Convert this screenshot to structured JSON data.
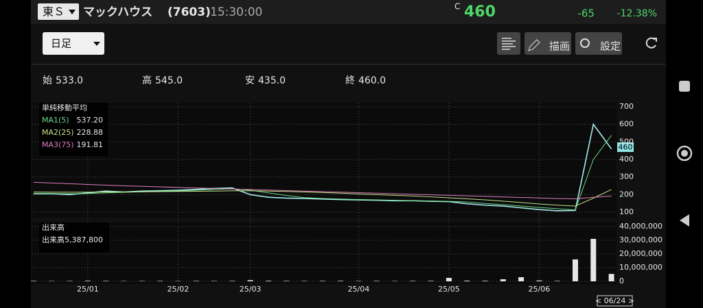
{
  "header": {
    "exchange": "東Ｓ",
    "name": "マックハウス",
    "code": "(7603)",
    "time": "15:30:00",
    "price_flag": "C",
    "price": "460",
    "change": "-65",
    "change_pct": "-12.38%"
  },
  "toolbar": {
    "period": "日足",
    "draw": "描画",
    "settings": "設定"
  },
  "ohlc": [
    {
      "label": "始",
      "value": "533.0"
    },
    {
      "label": "高",
      "value": "545.0"
    },
    {
      "label": "安",
      "value": "435.0"
    },
    {
      "label": "終",
      "value": "460.0"
    }
  ],
  "chart_data": [
    {
      "type": "line",
      "title": "単純移動平均",
      "last_label": "460",
      "cursor_label": "< 06/24 >",
      "categories": [
        null,
        null,
        null,
        "25/01",
        null,
        null,
        null,
        null,
        "25/02",
        null,
        null,
        null,
        "25/03",
        null,
        null,
        null,
        null,
        null,
        "25/04",
        null,
        null,
        null,
        null,
        "25/05",
        null,
        null,
        null,
        null,
        "25/06",
        null,
        null,
        null,
        null
      ],
      "series": [
        {
          "color": "#a8ecec",
          "values": [
            205,
            205,
            200,
            210,
            220,
            215,
            220,
            222,
            225,
            230,
            235,
            238,
            200,
            185,
            180,
            178,
            175,
            172,
            170,
            168,
            165,
            165,
            162,
            160,
            148,
            140,
            135,
            125,
            115,
            108,
            110,
            600,
            460
          ]
        },
        {
          "name": "MA1(5)",
          "legend_value": "537.20",
          "color": "#6fdc8c",
          "values": [
            207,
            206,
            205,
            206,
            210,
            213,
            216,
            219,
            221,
            225,
            229,
            233,
            225,
            210,
            195,
            183,
            178,
            175,
            172,
            170,
            168,
            166,
            164,
            162,
            158,
            150,
            143,
            135,
            127,
            120,
            113,
            400,
            537.2
          ]
        },
        {
          "name": "MA2(25)",
          "legend_value": "228.88",
          "color": "#c8e48a",
          "values": [
            215,
            214,
            214,
            214,
            215,
            215,
            216,
            217,
            218,
            219,
            220,
            222,
            222,
            220,
            218,
            215,
            212,
            208,
            204,
            200,
            196,
            192,
            187,
            182,
            176,
            170,
            163,
            155,
            147,
            140,
            135,
            180,
            228.88
          ]
        },
        {
          "name": "MA3(75)",
          "legend_value": "191.81",
          "color": "#e07fc0",
          "values": [
            270,
            266,
            262,
            258,
            254,
            250,
            247,
            244,
            241,
            238,
            235,
            232,
            229,
            226,
            223,
            220,
            217,
            214,
            211,
            208,
            205,
            202,
            199,
            196,
            193,
            190,
            187,
            184,
            181,
            178,
            176,
            185,
            191.81
          ]
        }
      ],
      "ylim": [
        69,
        723
      ],
      "yticks": [
        100,
        200,
        300,
        400,
        500,
        600,
        700
      ],
      "grid": true
    },
    {
      "type": "bar",
      "title": "出来高",
      "series": [
        {
          "name": "出来高",
          "legend_value": "5,387,800",
          "color": "#e6e6e6",
          "values": [
            300000,
            200000,
            250000,
            400000,
            300000,
            200000,
            250000,
            300000,
            200000,
            300000,
            250000,
            300000,
            800000,
            400000,
            300000,
            250000,
            300000,
            350000,
            250000,
            300000,
            200000,
            300000,
            350000,
            2500000,
            500000,
            400000,
            1500000,
            3000000,
            600000,
            300000,
            16000000,
            31000000,
            5387800
          ]
        }
      ],
      "ylim": [
        -2000000,
        43000000
      ],
      "yticks": [
        0,
        {
          "value": 10000000,
          "label": "10,000,000"
        },
        {
          "value": 20000000,
          "label": "20,000,000"
        },
        {
          "value": 30000000,
          "label": "30,000,000"
        },
        {
          "value": 40000000,
          "label": "40,000,000"
        }
      ],
      "grid": true
    }
  ]
}
